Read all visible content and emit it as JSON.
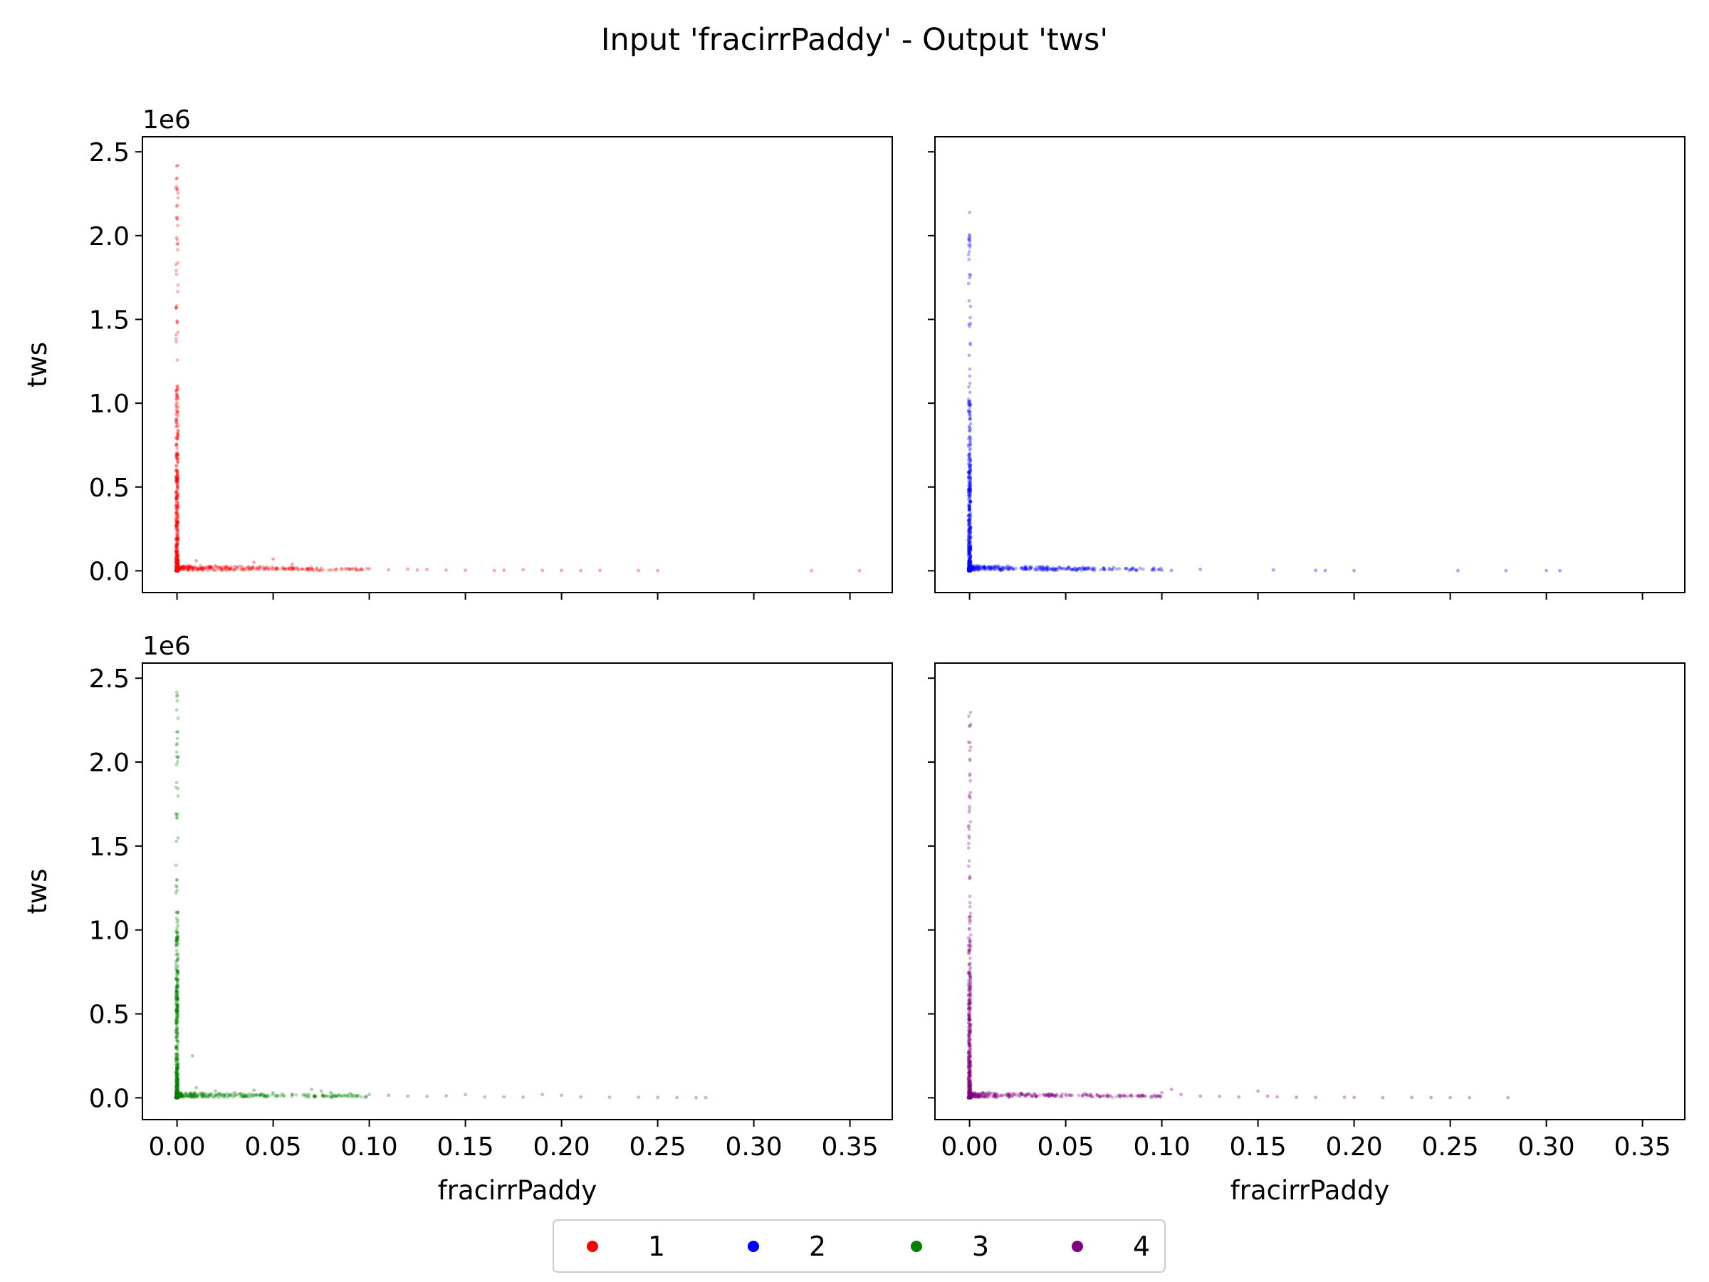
{
  "figure": {
    "title": "Input 'fracirrPaddy' - Output 'tws'"
  },
  "chart_data": [
    {
      "type": "scatter",
      "panel": "top-left",
      "series": [
        {
          "name": "1",
          "color": "#ff0000",
          "dense_x": 0.0,
          "dense_y_range": [
            0,
            2450000
          ],
          "tail_points": [
            [
              0.01,
              60000
            ],
            [
              0.02,
              30000
            ],
            [
              0.03,
              25000
            ],
            [
              0.04,
              50000
            ],
            [
              0.05,
              70000
            ],
            [
              0.055,
              20000
            ],
            [
              0.06,
              40000
            ],
            [
              0.07,
              10000
            ],
            [
              0.08,
              5000
            ],
            [
              0.09,
              8000
            ],
            [
              0.1,
              12000
            ],
            [
              0.11,
              6000
            ],
            [
              0.12,
              10000
            ],
            [
              0.125,
              5000
            ],
            [
              0.13,
              8000
            ],
            [
              0.14,
              4000
            ],
            [
              0.15,
              3000
            ],
            [
              0.165,
              2000
            ],
            [
              0.17,
              3000
            ],
            [
              0.18,
              6000
            ],
            [
              0.19,
              2000
            ],
            [
              0.2,
              2000
            ],
            [
              0.21,
              1000
            ],
            [
              0.22,
              2000
            ],
            [
              0.24,
              1000
            ],
            [
              0.25,
              1000
            ],
            [
              0.33,
              1000
            ],
            [
              0.355,
              1000
            ]
          ]
        }
      ],
      "xlim": [
        -0.018,
        0.372
      ],
      "ylim": [
        -130000,
        2590000
      ],
      "xticks": [
        "",
        "",
        "",
        "",
        "",
        "",
        "",
        ""
      ],
      "yticks": [
        "0.0",
        "0.5",
        "1.0",
        "1.5",
        "2.0",
        "2.5"
      ],
      "ytick_values": [
        0,
        500000,
        1000000,
        1500000,
        2000000,
        2500000
      ],
      "offset_text": "1e6",
      "ylabel": "tws",
      "xlabel": ""
    },
    {
      "type": "scatter",
      "panel": "top-right",
      "series": [
        {
          "name": "2",
          "color": "#0000ff",
          "dense_x": 0.0,
          "dense_y_range": [
            0,
            2260000
          ],
          "tail_points": [
            [
              0.01,
              20000
            ],
            [
              0.02,
              10000
            ],
            [
              0.03,
              8000
            ],
            [
              0.04,
              15000
            ],
            [
              0.05,
              10000
            ],
            [
              0.06,
              12000
            ],
            [
              0.07,
              6000
            ],
            [
              0.075,
              20000
            ],
            [
              0.095,
              3000
            ],
            [
              0.1,
              3000
            ],
            [
              0.105,
              2000
            ],
            [
              0.12,
              8000
            ],
            [
              0.158,
              5000
            ],
            [
              0.18,
              2000
            ],
            [
              0.185,
              1000
            ],
            [
              0.2,
              1000
            ],
            [
              0.254,
              1000
            ],
            [
              0.279,
              1000
            ],
            [
              0.3,
              1000
            ],
            [
              0.307,
              1000
            ]
          ]
        }
      ],
      "xlim": [
        -0.018,
        0.372
      ],
      "ylim": [
        -130000,
        2590000
      ],
      "xticks": [
        "",
        "",
        "",
        "",
        "",
        "",
        "",
        ""
      ],
      "yticks": [
        "",
        "",
        "",
        "",
        "",
        ""
      ],
      "ytick_values": [
        0,
        500000,
        1000000,
        1500000,
        2000000,
        2500000
      ],
      "offset_text": "",
      "ylabel": "",
      "xlabel": ""
    },
    {
      "type": "scatter",
      "panel": "bottom-left",
      "series": [
        {
          "name": "3",
          "color": "#008000",
          "dense_x": 0.0,
          "dense_y_range": [
            0,
            2460000
          ],
          "tail_points": [
            [
              0.008,
              250000
            ],
            [
              0.01,
              60000
            ],
            [
              0.02,
              40000
            ],
            [
              0.03,
              30000
            ],
            [
              0.04,
              45000
            ],
            [
              0.05,
              30000
            ],
            [
              0.06,
              20000
            ],
            [
              0.07,
              50000
            ],
            [
              0.075,
              40000
            ],
            [
              0.08,
              30000
            ],
            [
              0.09,
              25000
            ],
            [
              0.1,
              20000
            ],
            [
              0.11,
              15000
            ],
            [
              0.12,
              10000
            ],
            [
              0.13,
              8000
            ],
            [
              0.14,
              12000
            ],
            [
              0.15,
              20000
            ],
            [
              0.16,
              5000
            ],
            [
              0.17,
              6000
            ],
            [
              0.18,
              4000
            ],
            [
              0.19,
              20000
            ],
            [
              0.2,
              15000
            ],
            [
              0.21,
              5000
            ],
            [
              0.225,
              3000
            ],
            [
              0.24,
              3000
            ],
            [
              0.25,
              2000
            ],
            [
              0.26,
              2000
            ],
            [
              0.27,
              1000
            ],
            [
              0.275,
              1000
            ]
          ]
        }
      ],
      "xlim": [
        -0.018,
        0.372
      ],
      "ylim": [
        -130000,
        2590000
      ],
      "xticks": [
        "0.00",
        "0.05",
        "0.10",
        "0.15",
        "0.20",
        "0.25",
        "0.30",
        "0.35"
      ],
      "yticks": [
        "0.0",
        "0.5",
        "1.0",
        "1.5",
        "2.0",
        "2.5"
      ],
      "ytick_values": [
        0,
        500000,
        1000000,
        1500000,
        2000000,
        2500000
      ],
      "offset_text": "1e6",
      "ylabel": "tws",
      "xlabel": "fracirrPaddy"
    },
    {
      "type": "scatter",
      "panel": "bottom-right",
      "series": [
        {
          "name": "4",
          "color": "#800080",
          "dense_x": 0.0,
          "dense_y_range": [
            0,
            2400000
          ],
          "tail_points": [
            [
              0.01,
              30000
            ],
            [
              0.02,
              25000
            ],
            [
              0.03,
              20000
            ],
            [
              0.04,
              15000
            ],
            [
              0.05,
              20000
            ],
            [
              0.06,
              25000
            ],
            [
              0.07,
              10000
            ],
            [
              0.08,
              12000
            ],
            [
              0.09,
              15000
            ],
            [
              0.1,
              30000
            ],
            [
              0.105,
              50000
            ],
            [
              0.11,
              20000
            ],
            [
              0.12,
              10000
            ],
            [
              0.13,
              8000
            ],
            [
              0.14,
              5000
            ],
            [
              0.15,
              40000
            ],
            [
              0.155,
              10000
            ],
            [
              0.16,
              5000
            ],
            [
              0.17,
              3000
            ],
            [
              0.18,
              2000
            ],
            [
              0.195,
              3000
            ],
            [
              0.2,
              2000
            ],
            [
              0.215,
              1000
            ],
            [
              0.23,
              2000
            ],
            [
              0.24,
              1000
            ],
            [
              0.25,
              1000
            ],
            [
              0.26,
              1000
            ],
            [
              0.28,
              1000
            ]
          ]
        }
      ],
      "xlim": [
        -0.018,
        0.372
      ],
      "ylim": [
        -130000,
        2590000
      ],
      "xticks": [
        "0.00",
        "0.05",
        "0.10",
        "0.15",
        "0.20",
        "0.25",
        "0.30",
        "0.35"
      ],
      "yticks": [
        "",
        "",
        "",
        "",
        "",
        ""
      ],
      "ytick_values": [
        0,
        500000,
        1000000,
        1500000,
        2000000,
        2500000
      ],
      "offset_text": "",
      "ylabel": "",
      "xlabel": "fracirrPaddy"
    }
  ],
  "xtick_values": [
    0,
    0.05,
    0.1,
    0.15,
    0.2,
    0.25,
    0.3,
    0.35
  ],
  "legend": {
    "placement": "bottom-center",
    "entries": [
      {
        "label": "1",
        "color": "#ff0000"
      },
      {
        "label": "2",
        "color": "#0000ff"
      },
      {
        "label": "3",
        "color": "#008000"
      },
      {
        "label": "4",
        "color": "#800080"
      }
    ]
  }
}
